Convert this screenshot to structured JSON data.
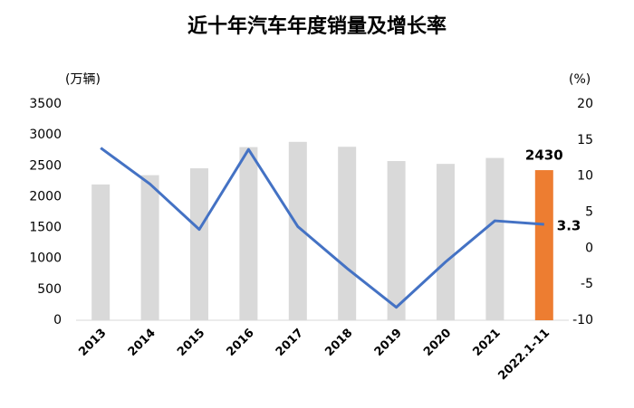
{
  "chart_data": {
    "type": "bar-line",
    "title": "近十年汽车年度销量及增长率",
    "y_label": "(万辆)",
    "y2_label": "(%)",
    "categories": [
      "2013",
      "2014",
      "2015",
      "2016",
      "2017",
      "2018",
      "2019",
      "2020",
      "2021",
      "2022.1-11"
    ],
    "series": [
      {
        "type": "bar",
        "colors": [
          "#d9d9d9",
          "#d9d9d9",
          "#d9d9d9",
          "#d9d9d9",
          "#d9d9d9",
          "#d9d9d9",
          "#d9d9d9",
          "#d9d9d9",
          "#d9d9d9",
          "#ed7d31"
        ],
        "values": [
          2198,
          2349,
          2460,
          2803,
          2888,
          2808,
          2577,
          2531,
          2627,
          2430
        ],
        "label_last": true
      },
      {
        "type": "line",
        "axis": "y2",
        "color": "#4472c4",
        "values": [
          13.9,
          8.9,
          2.6,
          13.7,
          3.0,
          -2.8,
          -8.2,
          -1.9,
          3.8,
          3.3
        ],
        "label_last": true
      }
    ],
    "ylim": [
      0,
      3500
    ],
    "yticks": [
      0,
      500,
      1000,
      1500,
      2000,
      2500,
      3000,
      3500
    ],
    "y2lim": [
      -10,
      20
    ],
    "y2ticks": [
      -10,
      -5,
      0,
      5,
      10,
      15,
      20
    ]
  }
}
